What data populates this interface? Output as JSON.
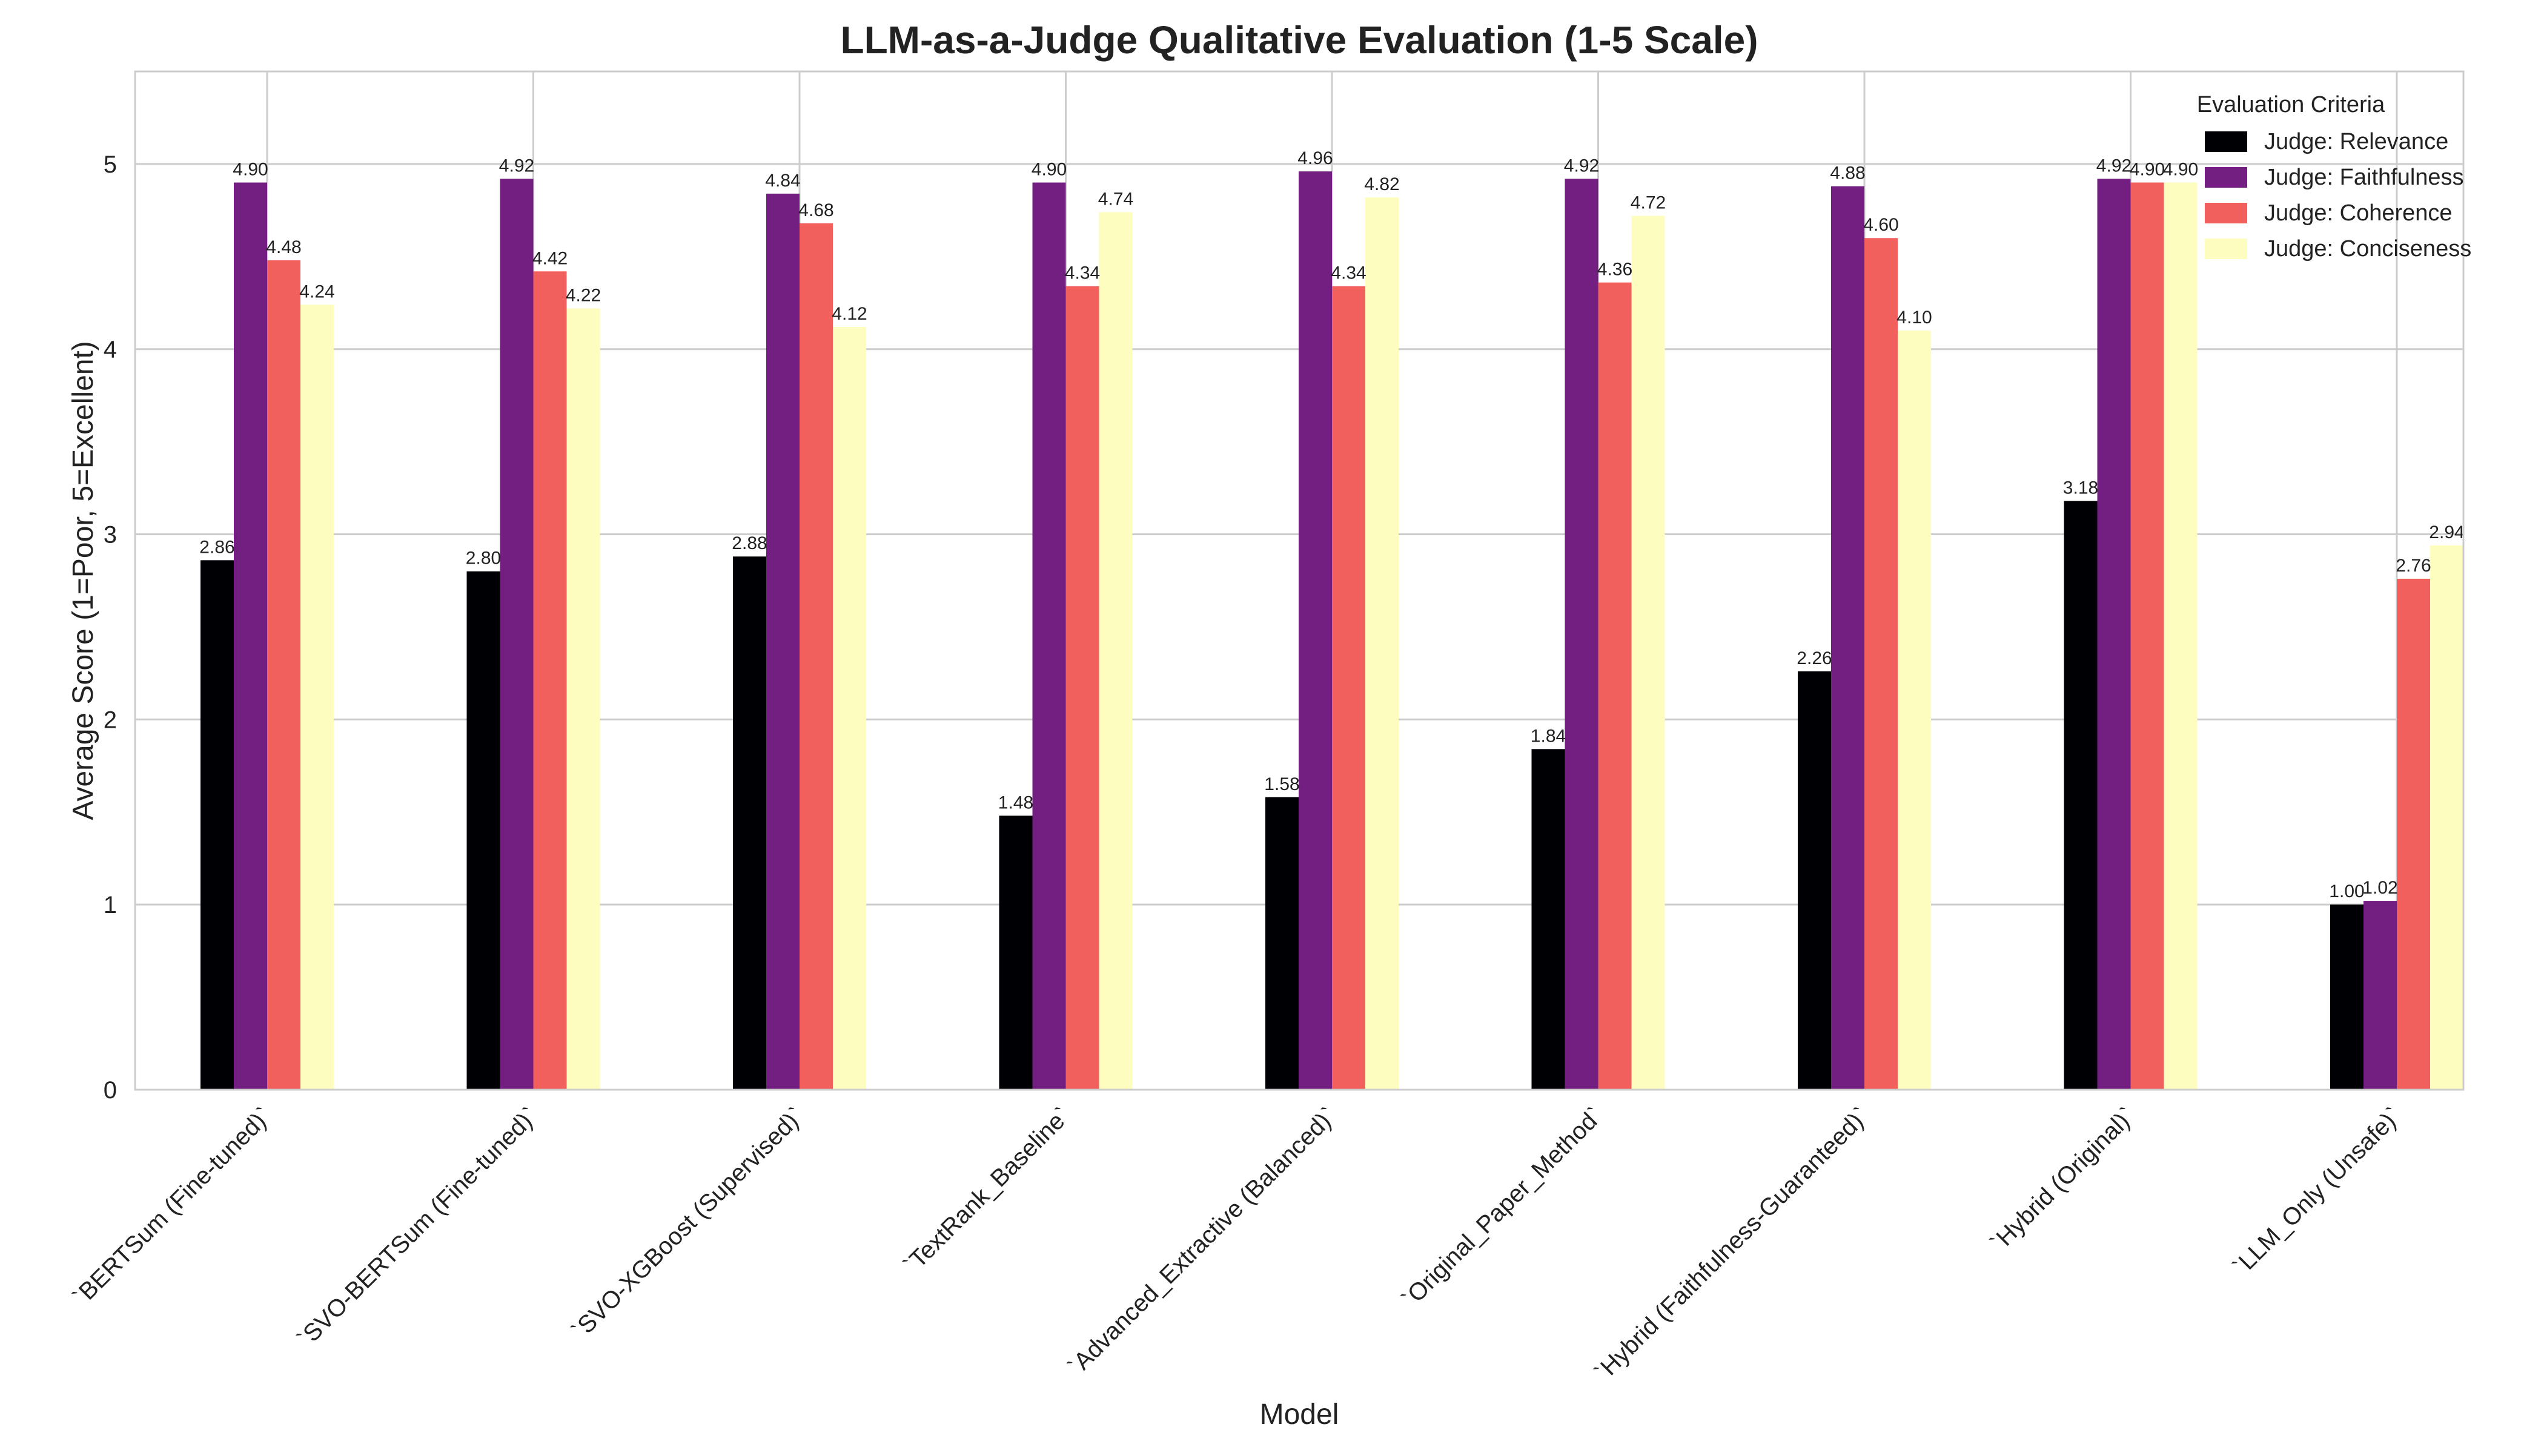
{
  "chart_data": {
    "type": "bar",
    "title": "LLM-as-a-Judge Qualitative Evaluation (1-5 Scale)",
    "xlabel": "Model",
    "ylabel": "Average Score (1=Poor, 5=Excellent)",
    "ylim": [
      0,
      5.5
    ],
    "yticks": [
      0,
      1,
      2,
      3,
      4,
      5
    ],
    "grid": true,
    "legend": {
      "title": "Evaluation Criteria",
      "placement": "top-right"
    },
    "categories": [
      "`BERTSum (Fine-tuned)`",
      "`SVO-BERTSum (Fine-tuned)`",
      "`SVO-XGBoost (Supervised)`",
      "`TextRank_Baseline`",
      "`Advanced_Extractive (Balanced)`",
      "`Original_Paper_Method`",
      "`Hybrid (Faithfulness-Guaranteed)`",
      "`Hybrid (Original)`",
      "`LLM_Only (Unsafe)`"
    ],
    "series": [
      {
        "name": "Judge: Relevance",
        "color": "#000004",
        "values": [
          2.86,
          2.8,
          2.88,
          1.48,
          1.58,
          1.84,
          2.26,
          3.18,
          1.0
        ],
        "labels": [
          "2.86",
          "2.80",
          "2.88",
          "1.48",
          "1.58",
          "1.84",
          "2.26",
          "3.18",
          "1.00"
        ]
      },
      {
        "name": "Judge: Faithfulness",
        "color": "#721f81",
        "values": [
          4.9,
          4.92,
          4.84,
          4.9,
          4.96,
          4.92,
          4.88,
          4.92,
          1.02
        ],
        "labels": [
          "4.90",
          "4.92",
          "4.84",
          "4.90",
          "4.96",
          "4.92",
          "4.88",
          "4.92",
          "1.02"
        ]
      },
      {
        "name": "Judge: Coherence",
        "color": "#f1605d",
        "values": [
          4.48,
          4.42,
          4.68,
          4.34,
          4.34,
          4.36,
          4.6,
          4.9,
          2.76
        ],
        "labels": [
          "4.48",
          "4.42",
          "4.68",
          "4.34",
          "4.34",
          "4.36",
          "4.60",
          "4.90",
          "2.76"
        ]
      },
      {
        "name": "Judge: Conciseness",
        "color": "#fcfdbf",
        "values": [
          4.24,
          4.22,
          4.12,
          4.74,
          4.82,
          4.72,
          4.1,
          4.9,
          2.94
        ],
        "labels": [
          "4.24",
          "4.22",
          "4.12",
          "4.74",
          "4.82",
          "4.72",
          "4.10",
          "4.90",
          "2.94"
        ]
      }
    ]
  }
}
